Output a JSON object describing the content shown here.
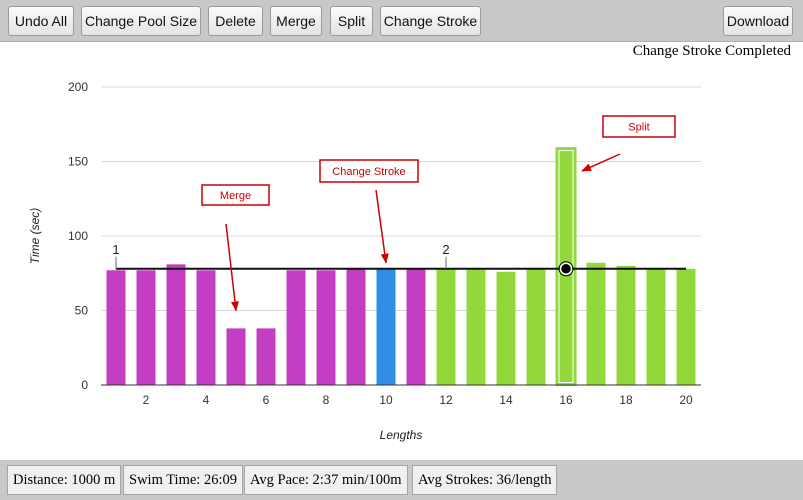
{
  "toolbar": {
    "undo_all": "Undo All",
    "change_pool_size": "Change Pool Size",
    "delete": "Delete",
    "merge": "Merge",
    "split": "Split",
    "change_stroke": "Change Stroke",
    "download": "Download"
  },
  "status_message": "Change Stroke Completed",
  "chart_data": {
    "type": "bar",
    "xlabel": "Lengths",
    "ylabel": "Time (sec)",
    "ylim": [
      0,
      200
    ],
    "yticks": [
      0,
      50,
      100,
      150,
      200
    ],
    "xticks": [
      2,
      4,
      6,
      8,
      10,
      12,
      14,
      16,
      18,
      20
    ],
    "categories": [
      1,
      2,
      3,
      4,
      5,
      6,
      7,
      8,
      9,
      10,
      11,
      12,
      13,
      14,
      15,
      16,
      17,
      18,
      19,
      20
    ],
    "values": [
      77,
      77,
      81,
      77,
      38,
      38,
      77,
      77,
      78,
      78,
      78,
      78,
      78,
      76,
      78,
      159,
      82,
      80,
      78,
      78
    ],
    "bar_colors": [
      "#c43ec4",
      "#c43ec4",
      "#c43ec4",
      "#c43ec4",
      "#c43ec4",
      "#c43ec4",
      "#c43ec4",
      "#c43ec4",
      "#c43ec4",
      "#2f8fe5",
      "#c43ec4",
      "#93d83a",
      "#93d83a",
      "#93d83a",
      "#93d83a",
      "#93d83a",
      "#93d83a",
      "#93d83a",
      "#93d83a",
      "#93d83a"
    ],
    "highlighted_bar": 16,
    "reference_line": 78,
    "selected_point": {
      "x": 16,
      "y": 78
    },
    "interval_markers": [
      {
        "x": 1,
        "label": "1"
      },
      {
        "x": 12,
        "label": "2"
      }
    ],
    "grid": true,
    "annotations": [
      {
        "text": "Merge",
        "target_bar": 5,
        "target_value": 50
      },
      {
        "text": "Change Stroke",
        "target_bar": 10,
        "target_value": 82
      },
      {
        "text": "Split",
        "target_bar": 16,
        "target_value": 145
      }
    ]
  },
  "colors": {
    "butterfly": "#c43ec4",
    "highlight": "#2f8fe5",
    "freestyle": "#93d83a",
    "annotation": "#cc0000"
  },
  "stats": {
    "distance": "Distance: 1000 m",
    "swim_time": "Swim Time: 26:09",
    "avg_pace": "Avg Pace: 2:37 min/100m",
    "avg_strokes": "Avg Strokes: 36/length"
  }
}
